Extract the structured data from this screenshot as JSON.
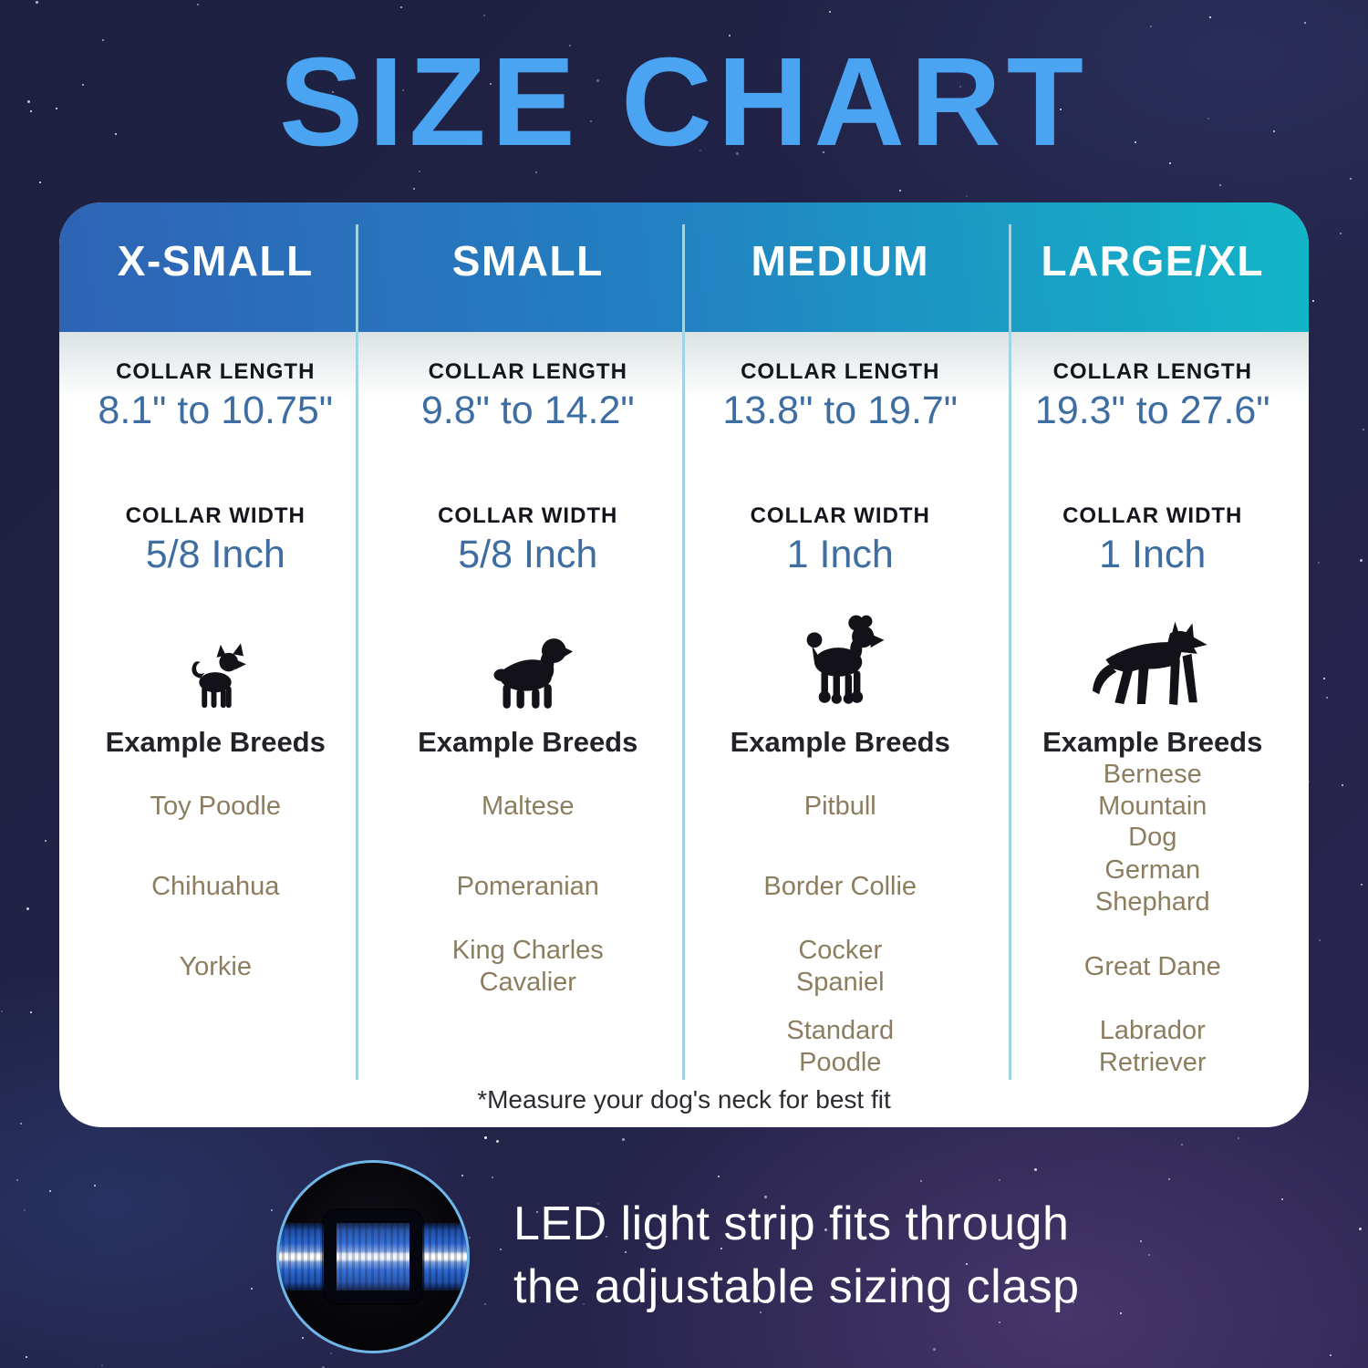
{
  "title": "SIZE CHART",
  "labels": {
    "collar_length": "COLLAR LENGTH",
    "collar_width": "COLLAR WIDTH",
    "example_breeds": "Example Breeds"
  },
  "columns": [
    {
      "name": "X-SMALL",
      "collar_length": "8.1\" to 10.75\"",
      "collar_width": "5/8 Inch",
      "icon": "chihuahua-silhouette-icon",
      "breeds": [
        "Toy Poodle",
        "Chihuahua",
        "Yorkie"
      ]
    },
    {
      "name": "SMALL",
      "collar_length": "9.8\" to 14.2\"",
      "collar_width": "5/8 Inch",
      "icon": "cavalier-spaniel-silhouette-icon",
      "breeds": [
        "Maltese",
        "Pomeranian",
        "King Charles Cavalier"
      ]
    },
    {
      "name": "MEDIUM",
      "collar_length": "13.8\" to 19.7\"",
      "collar_width": "1 Inch",
      "icon": "poodle-silhouette-icon",
      "breeds": [
        "Pitbull",
        "Border Collie",
        "Cocker Spaniel",
        "Standard Poodle"
      ]
    },
    {
      "name": "LARGE/XL",
      "collar_length": "19.3\" to 27.6\"",
      "collar_width": "1 Inch",
      "icon": "german-shepherd-silhouette-icon",
      "breeds": [
        "Bernese Mountain Dog",
        "German Shephard",
        "Great Dane",
        "Labrador Retriever"
      ]
    }
  ],
  "footnote": "*Measure your dog's neck for best fit",
  "callout": {
    "line1": "LED light strip fits through",
    "line2": "the adjustable sizing clasp",
    "image": "led-collar-clasp-photo"
  },
  "colors": {
    "title_blue": "#4BA4F1",
    "header_gradient_start": "#2F63B5",
    "header_gradient_end": "#12B6C8",
    "value_blue": "#3D6DA1",
    "label_dark": "#15151D",
    "breed_brown": "#8D7D5F",
    "divider_blue": "#9FD4E6",
    "circle_ring_blue": "#6FB7E8",
    "background_navy": "#222347"
  }
}
